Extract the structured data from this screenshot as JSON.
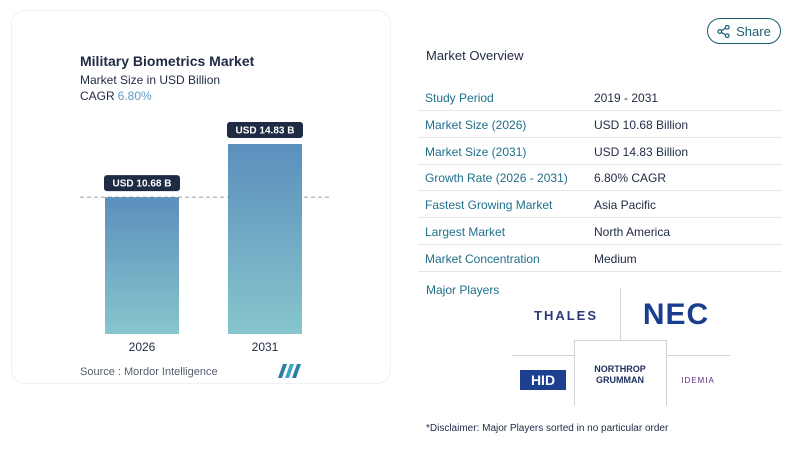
{
  "chart": {
    "title": "Military Biometrics Market",
    "subtitle": "Market Size in USD Billion",
    "cagr_label": "CAGR",
    "cagr_value": "6.80%",
    "source": "Source : Mordor Intelligence"
  },
  "chart_data": {
    "type": "bar",
    "categories": [
      "2026",
      "2031"
    ],
    "values": [
      10.68,
      14.83
    ],
    "data_labels": [
      "USD 10.68 B",
      "USD 14.83 B"
    ],
    "title": "Military Biometrics Market",
    "ylabel": "Market Size in USD Billion",
    "ylim": [
      0,
      14.83
    ],
    "colors": {
      "bar_top": "#5b8fbd",
      "bar_bottom": "#86c6cc",
      "label_bg": "#1f2a44",
      "dashed": "#9aa1ad"
    }
  },
  "share": {
    "label": "Share",
    "icon": "share-icon"
  },
  "overview": {
    "title": "Market Overview",
    "rows": [
      {
        "label": "Study Period",
        "value": "2019 - 2031"
      },
      {
        "label": "Market Size (2026)",
        "value": "USD 10.68 Billion"
      },
      {
        "label": "Market Size (2031)",
        "value": "USD 14.83 Billion"
      },
      {
        "label": "Growth Rate (2026 - 2031)",
        "value": "6.80% CAGR"
      },
      {
        "label": "Fastest Growing Market",
        "value": "Asia Pacific"
      },
      {
        "label": "Largest Market",
        "value": "North America"
      },
      {
        "label": "Market Concentration",
        "value": "Medium"
      }
    ]
  },
  "players": {
    "title": "Major Players",
    "thales": "THALES",
    "nec": "NEC",
    "hid": "HID",
    "northrop_1": "NORTHROP",
    "northrop_2": "GRUMMAN",
    "idemia": "IDEMIA"
  },
  "disclaimer": "*Disclaimer: Major Players sorted in no particular order"
}
